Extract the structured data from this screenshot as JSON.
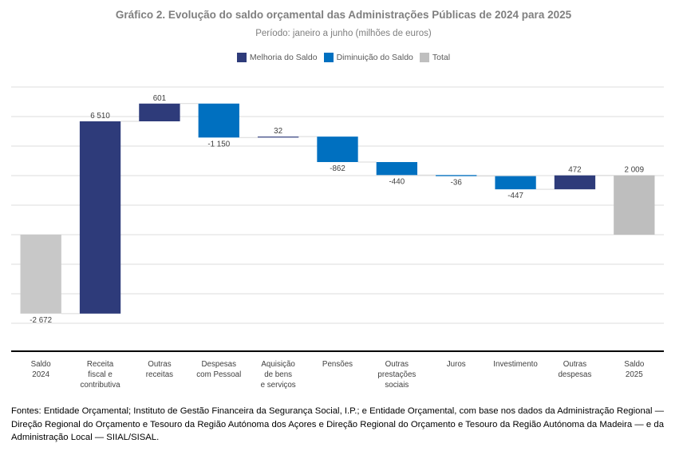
{
  "chart_data": {
    "type": "waterfall",
    "title": "Gráfico 2. Evolução do saldo orçamental das Administrações Públicas de 2024 para 2025",
    "subtitle": "Período: janeiro a junho (milhões de euros)",
    "xlabel": "",
    "ylabel": "",
    "units": "milhões de euros",
    "ylim": [
      -3946,
      5000
    ],
    "gridlines": [
      -3000,
      -2000,
      -1000,
      0,
      1000,
      2000,
      3000,
      4000,
      5000
    ],
    "grid": true,
    "y_tick_labels_visible": false,
    "legend_position": "top-center",
    "legend": [
      {
        "key": "increase",
        "label": "Melhoria do Saldo",
        "color": "#2E3B7A"
      },
      {
        "key": "decrease",
        "label": "Diminuição do Saldo",
        "color": "#0070C0"
      },
      {
        "key": "total",
        "label": "Total",
        "color": "#BFBFBF"
      }
    ],
    "categories": [
      [
        "Saldo",
        "2024"
      ],
      [
        "Receita",
        "fiscal e",
        "contributiva"
      ],
      [
        "Outras",
        "receitas"
      ],
      [
        "Despesas",
        "com Pessoal"
      ],
      [
        "Aquisição",
        "de bens",
        "e serviços"
      ],
      [
        "Pensões"
      ],
      [
        "Outras",
        "prestações",
        "sociais"
      ],
      [
        "Juros"
      ],
      [
        "Investimento"
      ],
      [
        "Outras",
        "despesas"
      ],
      [
        "Saldo",
        "2025"
      ]
    ],
    "values": [
      -2672,
      6510,
      601,
      -1150,
      32,
      -862,
      -440,
      -36,
      -447,
      472,
      2009
    ],
    "value_labels": [
      "-2 672",
      "6 510",
      "601",
      "-1 150",
      "32",
      "-862",
      "-440",
      "-36",
      "-447",
      "472",
      "2 009"
    ],
    "kinds": [
      "total",
      "increase",
      "increase",
      "decrease",
      "increase",
      "decrease",
      "decrease",
      "decrease",
      "decrease",
      "increase",
      "total"
    ],
    "total_colors": [
      "#C8C8C8",
      "#BEBEBE"
    ]
  },
  "source_note": "Fontes: Entidade Orçamental; Instituto de Gestão Financeira da Segurança Social, I.P.; e Entidade Orçamental, com base nos dados da Administração Regional — Direção Regional do Orçamento e Tesouro da Região Autónoma dos Açores e Direção Regional do Orçamento e Tesouro da Região Autónoma da Madeira — e da Administração Local — SIIAL/SISAL."
}
